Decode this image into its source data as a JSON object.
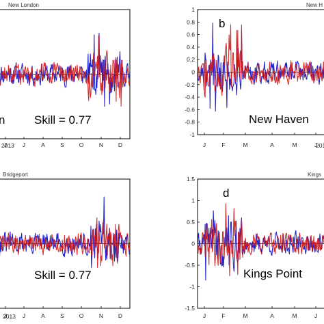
{
  "colors": {
    "observed": "#2424c8",
    "model": "#d01818",
    "frame": "#000000",
    "zero_line": "#000000"
  },
  "chart_data": [
    {
      "type": "line",
      "title": "New London",
      "panel_letter": "",
      "annotation_site": "n",
      "annotation_skill": "Skill = 0.77",
      "x_tick_labels": [
        "J",
        "J",
        "A",
        "S",
        "O",
        "N",
        "D"
      ],
      "x_year_label": "2013",
      "ylim": [
        -1.0,
        1.0
      ],
      "y_tick_labels": [],
      "series": [
        {
          "color": "#2424c8",
          "seed": 11,
          "spike_start": 0.68,
          "spike_end": 0.95,
          "big_pos": 0.74,
          "big_neg": -0.5
        },
        {
          "color": "#d01818",
          "seed": 12,
          "spike_start": 0.68,
          "spike_end": 0.95,
          "big_pos": 0.74,
          "big_neg": -0.5
        }
      ]
    },
    {
      "type": "line",
      "title": "New H",
      "panel_letter": "b",
      "annotation_site": "New Haven",
      "annotation_skill": "",
      "x_tick_labels": [
        "J",
        "F",
        "M",
        "A",
        "M",
        "J"
      ],
      "x_year_label": "201",
      "ylim": [
        -1.0,
        1.0
      ],
      "y_tick_labels": [
        "1",
        "0.8",
        "0.6",
        "0.4",
        "0.2",
        "0",
        "-0.2",
        "-0.4",
        "-0.6",
        "-0.8",
        "-1"
      ],
      "series": [
        {
          "color": "#2424c8",
          "seed": 21,
          "spike_start": 0.05,
          "spike_end": 0.35,
          "big_pos": 0.8,
          "big_neg": -0.75
        },
        {
          "color": "#d01818",
          "seed": 22,
          "spike_start": 0.05,
          "spike_end": 0.35,
          "big_pos": 0.8,
          "big_neg": -0.75
        }
      ]
    },
    {
      "type": "line",
      "title": "Bridgeport",
      "panel_letter": "",
      "annotation_site": "",
      "annotation_skill": "Skill = 0.77",
      "x_tick_labels": [
        "J",
        "J",
        "A",
        "S",
        "O",
        "N",
        "D"
      ],
      "x_year_label": "2013",
      "ylim": [
        -1.0,
        1.0
      ],
      "y_tick_labels": [],
      "series": [
        {
          "color": "#2424c8",
          "seed": 31,
          "spike_start": 0.7,
          "spike_end": 0.92,
          "big_pos": 0.85,
          "big_neg": -0.6
        },
        {
          "color": "#d01818",
          "seed": 32,
          "spike_start": 0.7,
          "spike_end": 0.92,
          "big_pos": 0.85,
          "big_neg": -0.6
        }
      ]
    },
    {
      "type": "line",
      "title": "Kings",
      "panel_letter": "d",
      "annotation_site": "Kings Point",
      "annotation_skill": "",
      "x_tick_labels": [
        "J",
        "F",
        "M",
        "A",
        "M",
        "J"
      ],
      "x_year_label": "201",
      "ylim": [
        -1.5,
        1.5
      ],
      "y_tick_labels": [
        "1.5",
        "1",
        "0.5",
        "0",
        "-0.5",
        "-1",
        "-1.5"
      ],
      "series": [
        {
          "color": "#2424c8",
          "seed": 41,
          "spike_start": 0.05,
          "spike_end": 0.35,
          "big_pos": 1.0,
          "big_neg": -1.0
        },
        {
          "color": "#d01818",
          "seed": 42,
          "spike_start": 0.05,
          "spike_end": 0.35,
          "big_pos": 1.0,
          "big_neg": -1.0
        }
      ]
    }
  ]
}
